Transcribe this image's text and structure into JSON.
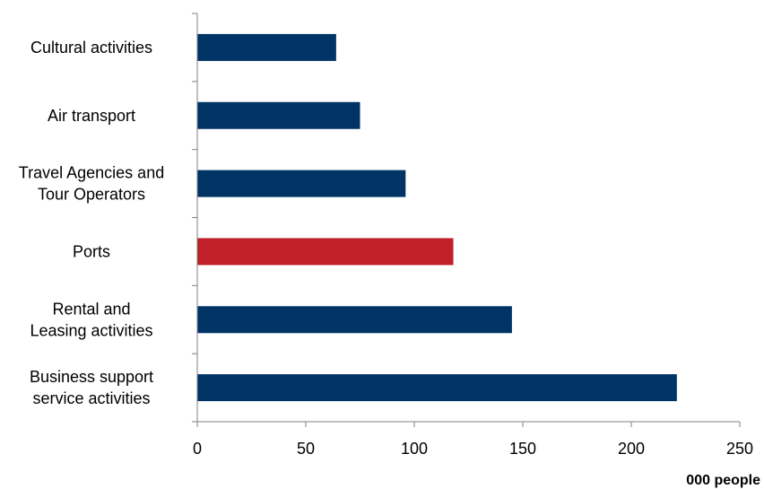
{
  "chart_data": {
    "type": "bar",
    "orientation": "horizontal",
    "categories": [
      [
        "Cultural activities"
      ],
      [
        "Air transport"
      ],
      [
        "Travel Agencies and",
        "Tour Operators"
      ],
      [
        "Ports"
      ],
      [
        "Rental and",
        "Leasing activities"
      ],
      [
        "Business support",
        "service activities"
      ]
    ],
    "values": [
      64,
      75,
      96,
      118,
      145,
      221
    ],
    "colors": [
      "#003366",
      "#003366",
      "#003366",
      "#C0202A",
      "#003366",
      "#003366"
    ],
    "xlim": [
      0,
      250
    ],
    "xticks": [
      0,
      50,
      100,
      150,
      200,
      250
    ],
    "xlabel": "000 people",
    "title": "",
    "ylabel": "",
    "grid": false,
    "legend": "none"
  }
}
